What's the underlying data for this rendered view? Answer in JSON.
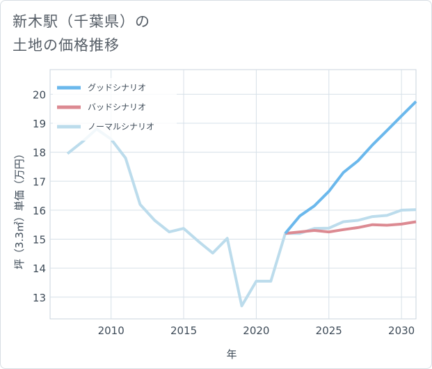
{
  "page": {
    "title_line1": "新木駅（千葉県）の",
    "title_line2": "土地の価格推移"
  },
  "chart_data": {
    "type": "line",
    "xlabel": "年",
    "ylabel": "坪（3.3㎡）単価（万円）",
    "xlim": [
      2005.8,
      2031
    ],
    "ylim": [
      12.25,
      20.85
    ],
    "xticks": [
      2010,
      2015,
      2020,
      2025,
      2030
    ],
    "yticks": [
      13,
      14,
      15,
      16,
      17,
      18,
      19,
      20
    ],
    "grid": true,
    "legend_position": "top-left",
    "series": [
      {
        "name": "グッドシナリオ",
        "color": "#6bb8ec",
        "x": [
          2022,
          2023,
          2024,
          2025,
          2026,
          2027,
          2028,
          2029,
          2030,
          2031
        ],
        "y": [
          15.2,
          15.8,
          16.15,
          16.65,
          17.3,
          17.7,
          18.25,
          18.75,
          19.25,
          19.75
        ]
      },
      {
        "name": "バッドシナリオ",
        "color": "#dc8a92",
        "x": [
          2022,
          2023,
          2024,
          2025,
          2026,
          2027,
          2028,
          2029,
          2030,
          2031
        ],
        "y": [
          15.2,
          15.25,
          15.3,
          15.25,
          15.33,
          15.4,
          15.5,
          15.48,
          15.52,
          15.6
        ]
      },
      {
        "name": "ノーマルシナリオ",
        "color": "#bcdcec",
        "x": [
          2007,
          2008,
          2009,
          2010,
          2011,
          2012,
          2013,
          2014,
          2015,
          2016,
          2017,
          2018,
          2019,
          2020,
          2021,
          2022,
          2023,
          2024,
          2025,
          2026,
          2027,
          2028,
          2029,
          2030,
          2031
        ],
        "y": [
          17.95,
          18.35,
          18.8,
          18.45,
          17.8,
          16.2,
          15.65,
          15.25,
          15.37,
          14.93,
          14.52,
          15.03,
          12.7,
          13.55,
          13.55,
          15.2,
          15.2,
          15.37,
          15.38,
          15.6,
          15.65,
          15.78,
          15.82,
          16.0,
          16.02
        ]
      }
    ]
  }
}
